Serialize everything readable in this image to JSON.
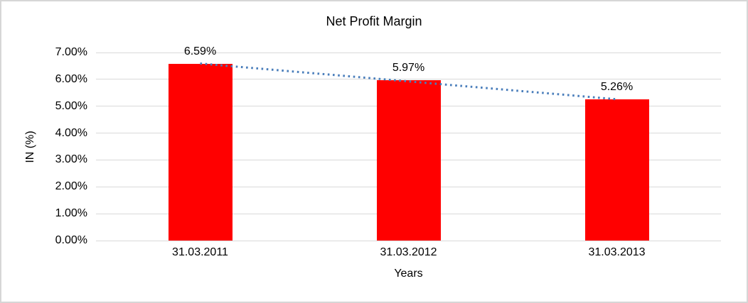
{
  "chart_data": {
    "type": "bar",
    "title": "Net Profit Margin",
    "xlabel": "Years",
    "ylabel": "IN (%)",
    "categories": [
      "31.03.2011",
      "31.03.2012",
      "31.03.2013"
    ],
    "values": [
      6.59,
      5.97,
      5.26
    ],
    "value_labels": [
      "6.59%",
      "5.97%",
      "5.26%"
    ],
    "ylim": [
      0,
      7
    ],
    "ytick_step": 1,
    "ytick_labels": [
      "0.00%",
      "1.00%",
      "2.00%",
      "3.00%",
      "4.00%",
      "5.00%",
      "6.00%",
      "7.00%"
    ],
    "grid": true,
    "legend": "none",
    "bar_color": "#ff0000",
    "gridline_color": "#d9d9d9",
    "text_color": "#000000",
    "frame_border_color": "#d6d6d6",
    "trendline": {
      "style": "dotted",
      "color": "#4a7ebb",
      "start_value": 6.59,
      "end_value": 5.26
    }
  }
}
